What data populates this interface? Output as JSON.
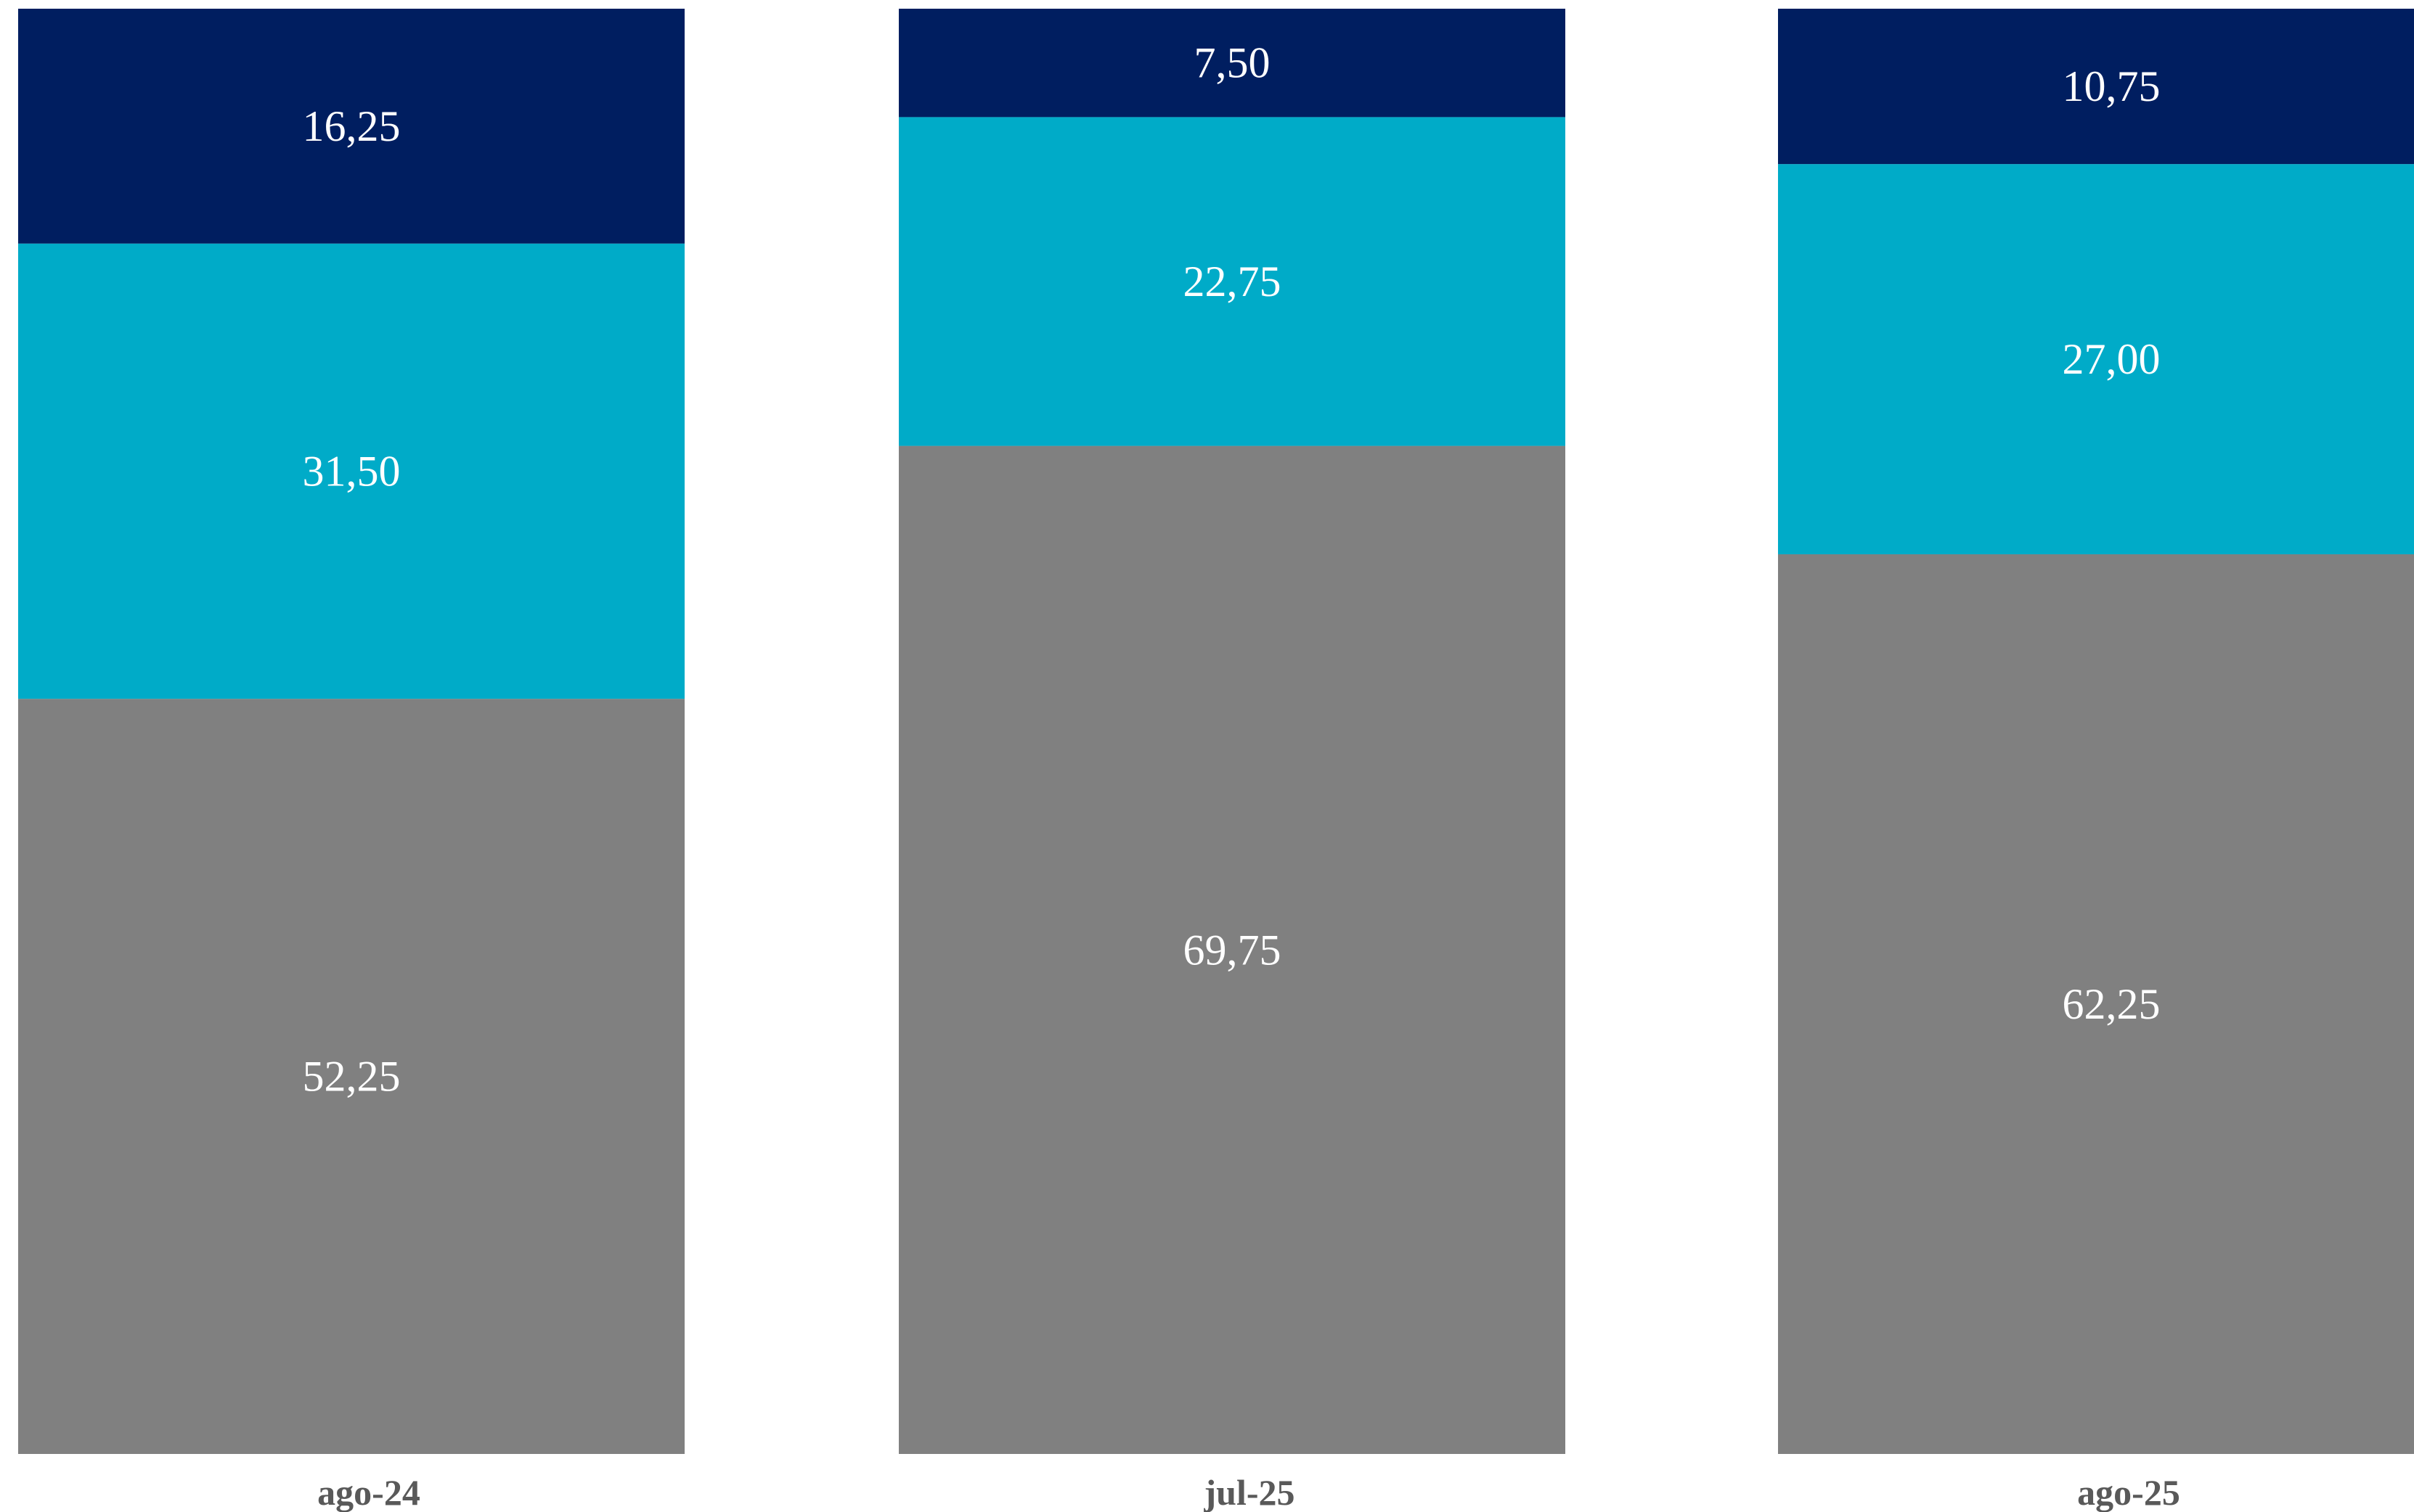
{
  "chart_data": {
    "type": "bar",
    "stacked": true,
    "normalized_percent": true,
    "categories": [
      "ago-24",
      "jul-25",
      "ago-25"
    ],
    "series": [
      {
        "values": [
          52.25,
          69.75,
          62.25
        ],
        "labels": [
          "52,25",
          "69,75",
          "62,25"
        ],
        "color": "#808080"
      },
      {
        "values": [
          31.5,
          22.75,
          27.0
        ],
        "labels": [
          "31,50",
          "22,75",
          "27,00"
        ],
        "color": "#00ABC8"
      },
      {
        "values": [
          16.25,
          7.5,
          10.75
        ],
        "labels": [
          "16,25",
          "7,50",
          "10,75"
        ],
        "color": "#001E60"
      }
    ],
    "ylim": [
      0,
      100
    ],
    "grid": false,
    "legend": "none"
  }
}
